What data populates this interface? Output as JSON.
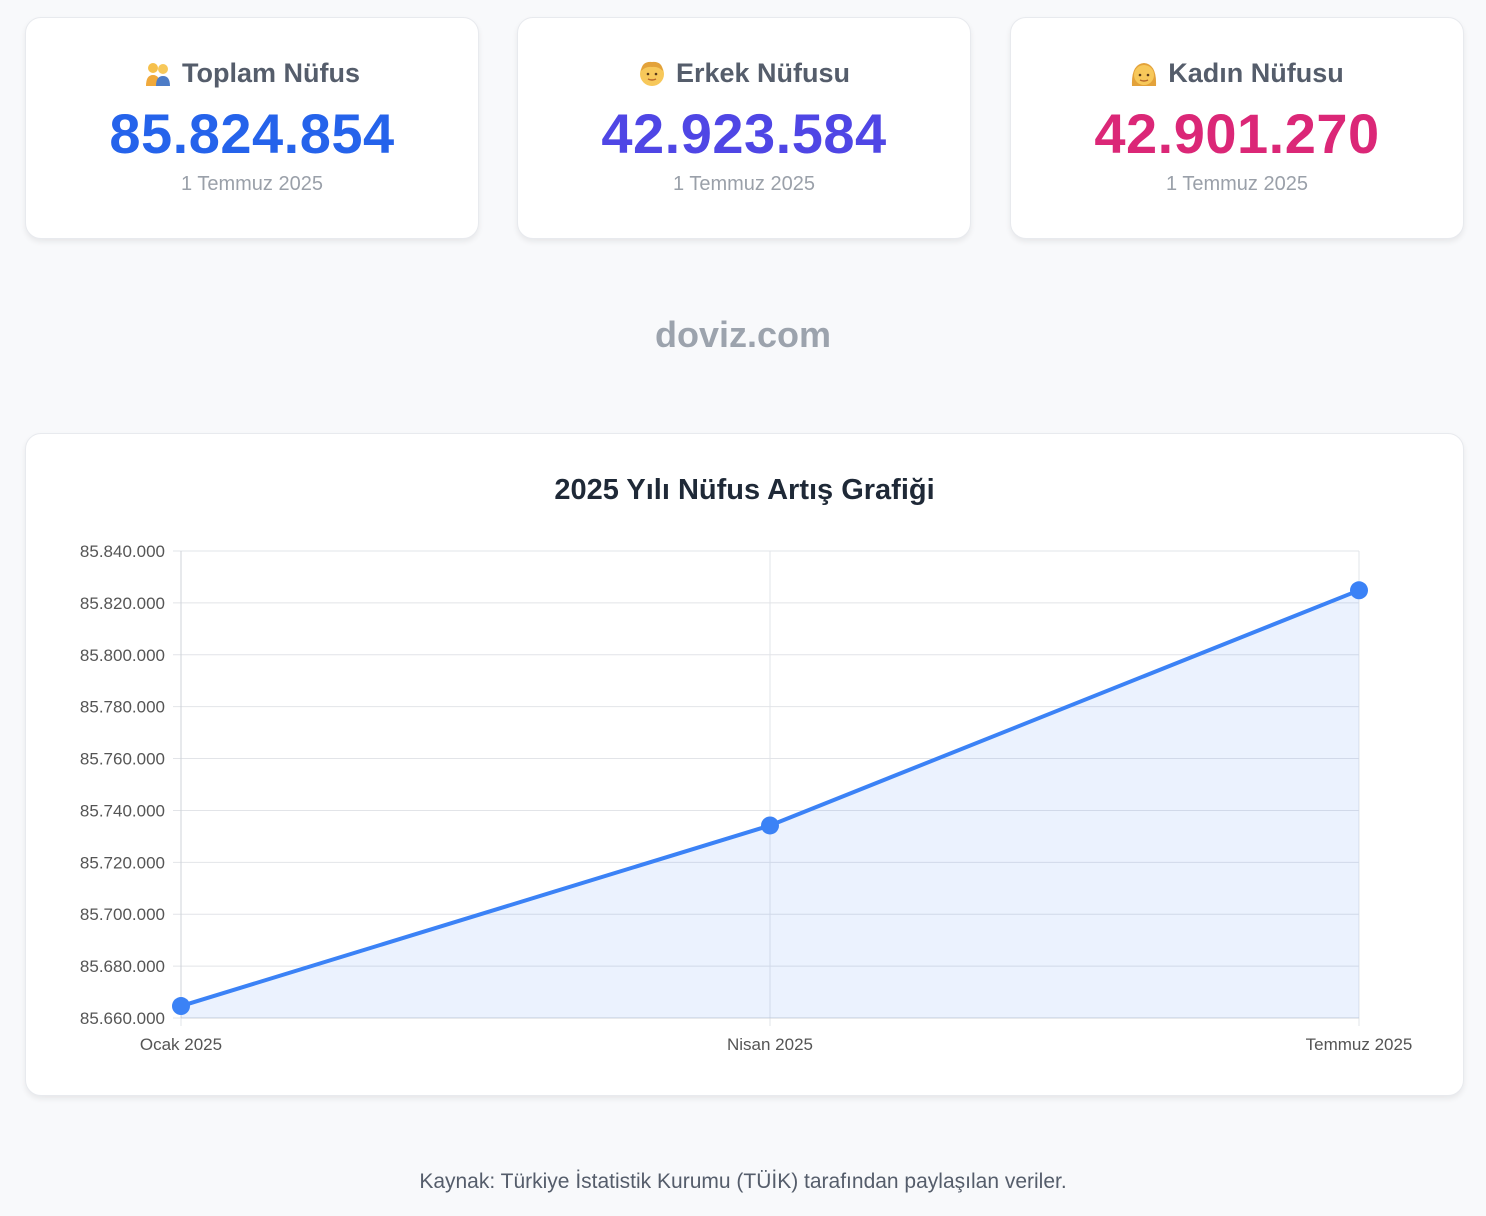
{
  "cards": [
    {
      "icon": "couple-emoji-icon",
      "title": "Toplam Nüfus",
      "value": "85.824.854",
      "date": "1 Temmuz 2025",
      "color": "#2563eb"
    },
    {
      "icon": "man-emoji-icon",
      "title": "Erkek Nüfusu",
      "value": "42.923.584",
      "date": "1 Temmuz 2025",
      "color": "#4f46e5"
    },
    {
      "icon": "woman-emoji-icon",
      "title": "Kadın Nüfusu",
      "value": "42.901.270",
      "date": "1 Temmuz 2025",
      "color": "#db2777"
    }
  ],
  "watermark": "doviz.com",
  "footer": "Kaynak: Türkiye İstatistik Kurumu (TÜİK) tarafından paylaşılan veriler.",
  "chart_data": {
    "type": "area",
    "title": "2025 Yılı Nüfus Artış Grafiği",
    "categories": [
      "Ocak 2025",
      "Nisan 2025",
      "Temmuz 2025"
    ],
    "series": [
      {
        "values": [
          85664606,
          85734206,
          85824854
        ],
        "color": "#3b82f6"
      }
    ],
    "ylim": [
      85660000,
      85840000
    ],
    "yticks": [
      "85.840.000",
      "85.820.000",
      "85.800.000",
      "85.780.000",
      "85.760.000",
      "85.740.000",
      "85.720.000",
      "85.700.000",
      "85.680.000",
      "85.660.000"
    ],
    "grid": true,
    "legend": "none"
  }
}
